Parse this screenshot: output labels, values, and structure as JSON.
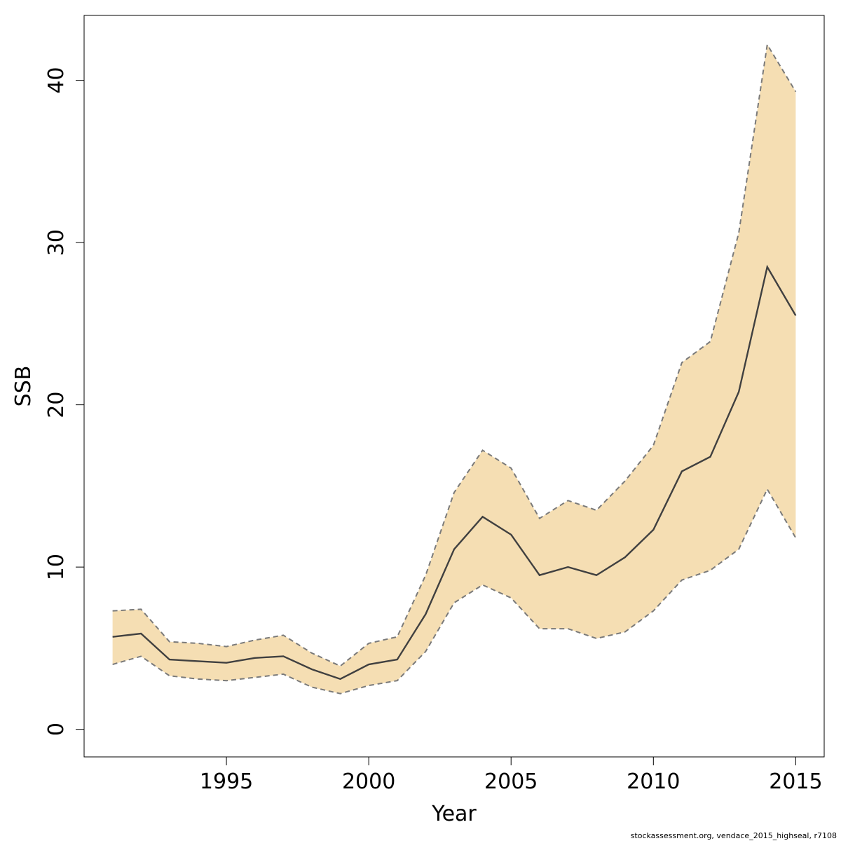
{
  "chart_data": {
    "type": "area",
    "xlabel": "Year",
    "ylabel": "SSB",
    "xlim": [
      1990.0,
      2016.0
    ],
    "ylim": [
      -1.7,
      44.0
    ],
    "xticks": [
      1995,
      2000,
      2005,
      2010,
      2015
    ],
    "yticks": [
      0,
      10,
      20,
      30,
      40
    ],
    "grid": false,
    "x": [
      1991,
      1992,
      1993,
      1994,
      1995,
      1996,
      1997,
      1998,
      1999,
      2000,
      2001,
      2002,
      2003,
      2004,
      2005,
      2006,
      2007,
      2008,
      2009,
      2010,
      2011,
      2012,
      2013,
      2014,
      2015
    ],
    "estimate": [
      5.7,
      5.9,
      4.3,
      4.2,
      4.1,
      4.4,
      4.5,
      3.7,
      3.1,
      4.0,
      4.3,
      7.1,
      11.1,
      13.1,
      12.0,
      9.5,
      10.0,
      9.5,
      10.6,
      12.3,
      15.9,
      16.8,
      20.8,
      28.5,
      25.5
    ],
    "upper": [
      7.3,
      7.4,
      5.4,
      5.3,
      5.1,
      5.5,
      5.8,
      4.7,
      3.9,
      5.3,
      5.7,
      9.5,
      14.6,
      17.2,
      16.1,
      13.0,
      14.1,
      13.5,
      15.3,
      17.5,
      22.6,
      23.9,
      30.6,
      42.2,
      39.3
    ],
    "lower": [
      4.0,
      4.5,
      3.3,
      3.1,
      3.0,
      3.2,
      3.4,
      2.6,
      2.2,
      2.7,
      3.0,
      4.8,
      7.8,
      8.9,
      8.1,
      6.2,
      6.2,
      5.6,
      6.0,
      7.3,
      9.2,
      9.8,
      11.1,
      14.8,
      11.8
    ],
    "colors": {
      "band": "#f5deb3",
      "estimate_line": "#404040",
      "bound_line": "#7a7a7a",
      "frame": "#000000"
    }
  },
  "footer": {
    "note": "stockassessment.org, vendace_2015_highseal, r7108"
  }
}
